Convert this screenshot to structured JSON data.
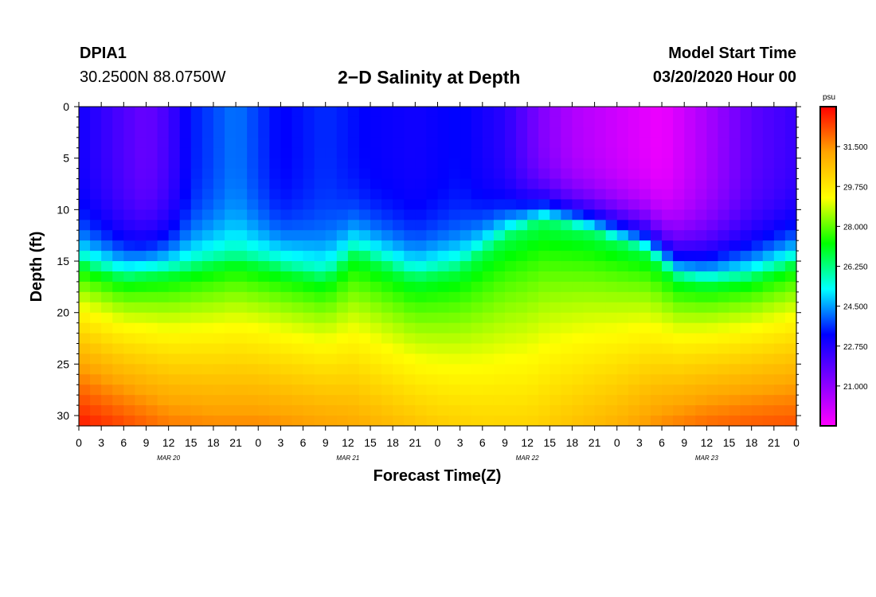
{
  "header": {
    "station": "DPIA1",
    "coords": "30.2500N 88.0750W",
    "title": "2−D Salinity at Depth",
    "model_start_label": "Model Start Time",
    "model_start_value": "03/20/2020 Hour 00"
  },
  "colors": {
    "colormap": [
      "#ff00ff",
      "#8000ff",
      "#0000ff",
      "#00ffff",
      "#00ff00",
      "#ffff00",
      "#ffa500",
      "#ff0000"
    ]
  },
  "chart_data": {
    "type": "heatmap",
    "title": "2−D Salinity at Depth",
    "xlabel": "Forecast Time(Z)",
    "ylabel": "Depth (ft)",
    "xlim": [
      0,
      96
    ],
    "ylim": [
      0,
      31
    ],
    "x_tick_labels": [
      "0",
      "3",
      "6",
      "9",
      "12",
      "15",
      "18",
      "21",
      "0",
      "3",
      "6",
      "9",
      "12",
      "15",
      "18",
      "21",
      "0",
      "3",
      "6",
      "9",
      "12",
      "15",
      "18",
      "21",
      "0",
      "3",
      "6",
      "9",
      "12",
      "15",
      "18",
      "21",
      "0"
    ],
    "date_labels": [
      {
        "label": "MAR 20",
        "hour": 12
      },
      {
        "label": "MAR 21",
        "hour": 36
      },
      {
        "label": "MAR 22",
        "hour": 60
      },
      {
        "label": "MAR 23",
        "hour": 84
      }
    ],
    "y_ticks": [
      0,
      5,
      10,
      15,
      20,
      25,
      30
    ],
    "y_tick_labels": [
      "0",
      "5",
      "10",
      "15",
      "20",
      "25",
      "30"
    ],
    "colorbar": {
      "unit": "psu",
      "range": [
        19.25,
        33.25
      ],
      "ticks": [
        21.0,
        22.75,
        24.5,
        26.25,
        28.0,
        29.75,
        31.5
      ],
      "tick_labels": [
        "21.000",
        "22.750",
        "24.500",
        "26.250",
        "28.000",
        "29.750",
        "31.500"
      ]
    },
    "series": [
      {
        "name": "surface_salinity_psu",
        "x": [
          0,
          6,
          9,
          12,
          15,
          21,
          27,
          33,
          39,
          45,
          51,
          57,
          62,
          66,
          72,
          78,
          84,
          90,
          96
        ],
        "values": [
          23.0,
          22.0,
          21.6,
          22.2,
          23.4,
          24.2,
          23.2,
          23.6,
          23.2,
          23.0,
          23.3,
          22.6,
          21.2,
          20.5,
          20.0,
          19.5,
          20.6,
          21.8,
          22.4
        ]
      },
      {
        "name": "halocline_depth_ft",
        "x": [
          0,
          6,
          12,
          18,
          21,
          27,
          33,
          37,
          45,
          51,
          57,
          62,
          68,
          72,
          76,
          80,
          84,
          90,
          96
        ],
        "values": [
          15.0,
          16.5,
          16.0,
          15.0,
          14.5,
          15.5,
          16.5,
          14.0,
          16.5,
          15.5,
          12.5,
          11.0,
          12.0,
          13.0,
          14.0,
          16.5,
          17.0,
          16.5,
          15.0
        ]
      },
      {
        "name": "bottom_salinity_psu",
        "x": [
          0,
          6,
          12,
          18,
          24,
          30,
          36,
          42,
          48,
          54,
          60,
          66,
          72,
          78,
          84,
          90,
          96
        ],
        "values": [
          33.0,
          32.4,
          31.8,
          31.6,
          31.6,
          31.4,
          31.2,
          30.8,
          30.4,
          30.2,
          30.2,
          30.6,
          31.0,
          31.6,
          32.0,
          32.2,
          32.3
        ]
      }
    ]
  }
}
